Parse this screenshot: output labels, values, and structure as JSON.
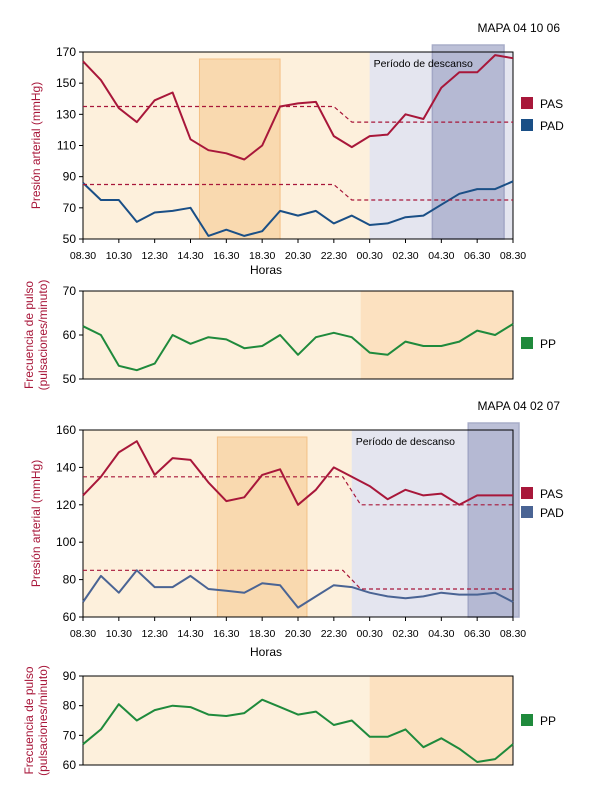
{
  "colors": {
    "pas": "#a8173a",
    "pad": "#1a4f86",
    "pad_light": "#4a6494",
    "pp": "#1f8a3c",
    "day_bg": "#fdf0dc",
    "night_bg": "#e4e5ef",
    "night_dark": "#a6abca",
    "activity": "#f9d6a8",
    "pp_night": "#fce1c0",
    "axis_label": "#a8173a"
  },
  "chart_data": [
    {
      "type": "line",
      "title": "MAPA 04 10 06",
      "xlabel": "Horas",
      "ylabel": "Presión arterial (mmHg)",
      "ylim": [
        50,
        170
      ],
      "yticks": [
        50,
        70,
        90,
        110,
        130,
        150,
        170
      ],
      "xlim": [
        0,
        24
      ],
      "xticks": [
        "08.30",
        "10.30",
        "12.30",
        "14.30",
        "16.30",
        "18.30",
        "20.30",
        "22.30",
        "00.30",
        "02.30",
        "04.30",
        "06.30",
        "08.30"
      ],
      "annotation": "Período de descanso",
      "rest_period": [
        16,
        24
      ],
      "activity_period": [
        6.5,
        11
      ],
      "dark_period": [
        19.5,
        23.5
      ],
      "legend": [
        {
          "name": "PAS"
        },
        {
          "name": "PAD"
        }
      ],
      "series": [
        {
          "name": "PAS",
          "x": [
            0,
            1,
            2,
            3,
            4,
            5,
            6,
            7,
            8,
            9,
            10,
            11,
            12,
            13,
            14,
            15,
            16,
            17,
            18,
            19,
            20,
            21,
            22,
            23,
            24
          ],
          "values": [
            164,
            152,
            134,
            125,
            139,
            144,
            114,
            107,
            105,
            101,
            110,
            135,
            137,
            138,
            116,
            109,
            116,
            117,
            130,
            127,
            147,
            157,
            157,
            168,
            166
          ]
        },
        {
          "name": "PAD",
          "x": [
            0,
            1,
            2,
            3,
            4,
            5,
            6,
            7,
            8,
            9,
            10,
            11,
            12,
            13,
            14,
            15,
            16,
            17,
            18,
            19,
            20,
            21,
            22,
            23,
            24
          ],
          "values": [
            86,
            75,
            75,
            61,
            67,
            68,
            70,
            52,
            56,
            52,
            55,
            68,
            65,
            68,
            60,
            65,
            59,
            60,
            64,
            65,
            72,
            79,
            82,
            82,
            87
          ]
        },
        {
          "name": "PAS limit",
          "style": "dashed",
          "x": [
            0,
            14,
            15,
            24
          ],
          "values": [
            135,
            135,
            125,
            125
          ]
        },
        {
          "name": "PAD limit",
          "style": "dashed",
          "x": [
            0,
            14,
            15,
            24
          ],
          "values": [
            85,
            85,
            75,
            75
          ]
        }
      ]
    },
    {
      "type": "line",
      "ylabel": "Frecuencia de pulso (pulsaciones/minuto)",
      "ylim": [
        50,
        70
      ],
      "yticks": [
        50,
        60,
        70
      ],
      "xlim": [
        0,
        24
      ],
      "night_period": [
        15.5,
        24
      ],
      "legend": [
        {
          "name": "PP"
        }
      ],
      "series": [
        {
          "name": "PP",
          "x": [
            0,
            1,
            2,
            3,
            4,
            5,
            6,
            7,
            8,
            9,
            10,
            11,
            12,
            13,
            14,
            15,
            16,
            17,
            18,
            19,
            20,
            21,
            22,
            23,
            24
          ],
          "values": [
            62,
            60,
            53,
            52,
            53.5,
            60,
            58,
            59.5,
            59,
            57,
            57.5,
            60,
            55.5,
            59.5,
            60.5,
            59.5,
            56,
            55.5,
            58.5,
            57.5,
            57.5,
            58.5,
            61,
            60,
            62.5
          ]
        }
      ]
    },
    {
      "type": "line",
      "title": "MAPA 04 02 07",
      "xlabel": "Horas",
      "ylabel": "Presión arterial (mmHg)",
      "ylim": [
        60,
        160
      ],
      "yticks": [
        60,
        80,
        100,
        120,
        140,
        160
      ],
      "xlim": [
        0,
        24
      ],
      "xticks": [
        "08.30",
        "10.30",
        "12.30",
        "14.30",
        "16.30",
        "18.30",
        "20.30",
        "22.30",
        "00.30",
        "02.30",
        "04.30",
        "06.30",
        "08.30"
      ],
      "annotation": "Período de descanso",
      "rest_period": [
        15,
        24
      ],
      "activity_period": [
        7.5,
        12.5
      ],
      "dark_period": [
        21.5,
        24
      ],
      "legend": [
        {
          "name": "PAS"
        },
        {
          "name": "PAD"
        }
      ],
      "series": [
        {
          "name": "PAS",
          "x": [
            0,
            1,
            2,
            3,
            4,
            5,
            6,
            7,
            8,
            9,
            10,
            11,
            12,
            13,
            14,
            15,
            16,
            17,
            18,
            19,
            20,
            21,
            22,
            23,
            24
          ],
          "values": [
            125,
            135,
            148,
            154,
            136,
            145,
            144,
            132,
            122,
            124,
            136,
            139,
            120,
            128,
            140,
            135,
            130,
            123,
            128,
            125,
            126,
            120,
            125,
            125,
            125
          ]
        },
        {
          "name": "PAD",
          "x": [
            0,
            1,
            2,
            3,
            4,
            5,
            6,
            7,
            8,
            9,
            10,
            11,
            12,
            13,
            14,
            15,
            16,
            17,
            18,
            19,
            20,
            21,
            22,
            23,
            24
          ],
          "values": [
            68,
            82,
            73,
            85,
            76,
            76,
            82,
            75,
            74,
            73,
            78,
            77,
            65,
            71,
            77,
            76,
            73,
            71,
            70,
            71,
            73,
            72,
            72,
            73,
            68
          ]
        },
        {
          "name": "PAS limit",
          "style": "dashed",
          "x": [
            0,
            14.5,
            15.5,
            24
          ],
          "values": [
            135,
            135,
            120,
            120
          ]
        },
        {
          "name": "PAD limit",
          "style": "dashed",
          "x": [
            0,
            14.5,
            15.5,
            24
          ],
          "values": [
            85,
            85,
            75,
            75
          ]
        }
      ]
    },
    {
      "type": "line",
      "ylabel": "Frecuencia de pulso (pulsaciones/minuto)",
      "ylim": [
        60,
        90
      ],
      "yticks": [
        60,
        70,
        80,
        90
      ],
      "xlim": [
        0,
        24
      ],
      "night_period": [
        16,
        24
      ],
      "legend": [
        {
          "name": "PP"
        }
      ],
      "series": [
        {
          "name": "PP",
          "x": [
            0,
            1,
            2,
            3,
            4,
            5,
            6,
            7,
            8,
            9,
            10,
            11,
            12,
            13,
            14,
            15,
            16,
            17,
            18,
            19,
            20,
            21,
            22,
            23,
            24
          ],
          "values": [
            67,
            72,
            80.5,
            75,
            78.5,
            80,
            79.5,
            77,
            76.5,
            77.5,
            82,
            79.5,
            77,
            78,
            73.5,
            75,
            69.5,
            69.5,
            72,
            66,
            69,
            65.5,
            61,
            62,
            67
          ]
        }
      ]
    }
  ]
}
